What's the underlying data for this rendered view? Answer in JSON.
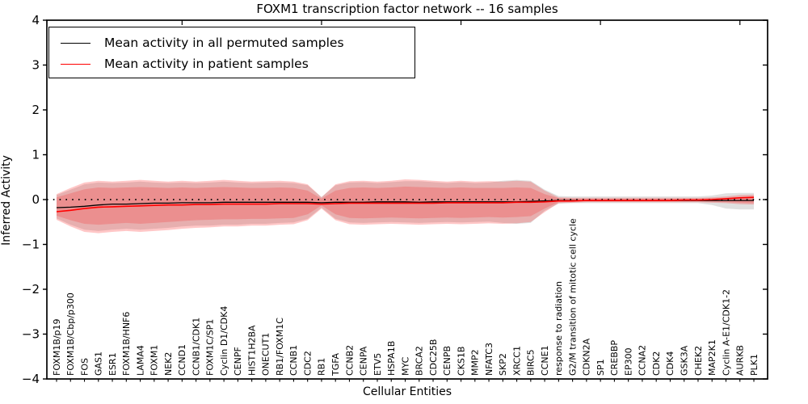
{
  "chart_data": {
    "type": "line",
    "title": "FOXM1 transcription factor network -- 16 samples",
    "xlabel": "Cellular Entities",
    "ylabel": "Inferred Activity",
    "ylim": [
      -4,
      4
    ],
    "ytick_values": [
      4,
      3,
      2,
      1,
      0,
      -1,
      -2,
      -3,
      -4
    ],
    "ytick_labels": [
      "4",
      "3",
      "2",
      "1",
      "0",
      "−1",
      "−2",
      "−3",
      "−4"
    ],
    "grid": false,
    "zero_line_style": "dotted",
    "legend": {
      "position": "upper left",
      "entries": [
        {
          "label": "Mean activity in all permuted samples",
          "color": "#000000"
        },
        {
          "label": "Mean activity in patient samples",
          "color": "#ff0000"
        }
      ]
    },
    "categories": [
      "FOXM1B/p19",
      "FOXM1B/Cbp/p300",
      "FOS",
      "GAS1",
      "ESR1",
      "FOXM1B/HNF6",
      "LAMA4",
      "FOXM1",
      "NEK2",
      "CCND1",
      "CCNB1/CDK1",
      "FOXM1C/SP1",
      "Cyclin D1/CDK4",
      "CENPF",
      "HIST1H2BA",
      "ONECUT1",
      "RB1/FOXM1C",
      "CCNB1",
      "CDC2",
      "RB1",
      "TGFA",
      "CCNB2",
      "CENPA",
      "ETV5",
      "HSPA1B",
      "MYC",
      "BRCA2",
      "CDC25B",
      "CENPB",
      "CKS1B",
      "MMP2",
      "NFATC3",
      "SKP2",
      "XRCC1",
      "BIRC5",
      "CCNE1",
      "response to radiation",
      "G2/M transition of mitotic cell cycle",
      "CDKN2A",
      "SP1",
      "CREBBP",
      "EP300",
      "CCNA2",
      "CDK2",
      "CDK4",
      "GSK3A",
      "CHEK2",
      "MAP2K1",
      "Cyclin A-E1/CDK1-2",
      "AURKB",
      "PLK1"
    ],
    "xticks_major_top_indices": [
      9,
      19,
      29,
      39,
      49
    ],
    "series": [
      {
        "name": "Mean activity in all permuted samples",
        "color": "#000000",
        "values": [
          -0.18,
          -0.17,
          -0.15,
          -0.12,
          -0.1,
          -0.1,
          -0.09,
          -0.08,
          -0.08,
          -0.07,
          -0.07,
          -0.07,
          -0.06,
          -0.06,
          -0.06,
          -0.06,
          -0.06,
          -0.06,
          -0.06,
          -0.07,
          -0.06,
          -0.06,
          -0.06,
          -0.05,
          -0.05,
          -0.05,
          -0.06,
          -0.05,
          -0.05,
          -0.05,
          -0.05,
          -0.05,
          -0.05,
          -0.05,
          -0.04,
          -0.03,
          -0.02,
          -0.02,
          -0.02,
          -0.02,
          -0.02,
          -0.02,
          -0.02,
          -0.02,
          -0.02,
          -0.02,
          -0.02,
          -0.02,
          -0.02,
          -0.02,
          -0.02
        ]
      },
      {
        "name": "Mean activity in patient samples",
        "color": "#ff0000",
        "values": [
          -0.27,
          -0.24,
          -0.2,
          -0.17,
          -0.16,
          -0.15,
          -0.14,
          -0.13,
          -0.12,
          -0.12,
          -0.11,
          -0.11,
          -0.1,
          -0.1,
          -0.1,
          -0.1,
          -0.09,
          -0.09,
          -0.09,
          -0.1,
          -0.09,
          -0.08,
          -0.08,
          -0.08,
          -0.08,
          -0.08,
          -0.08,
          -0.08,
          -0.07,
          -0.07,
          -0.07,
          -0.07,
          -0.07,
          -0.06,
          -0.06,
          -0.05,
          -0.03,
          -0.03,
          -0.02,
          -0.02,
          -0.02,
          -0.02,
          -0.02,
          -0.02,
          -0.02,
          -0.01,
          -0.01,
          0.0,
          0.02,
          0.04,
          0.05
        ]
      }
    ],
    "bands": [
      {
        "name": "permuted-range",
        "color": "rgba(0,0,0,0.12)",
        "top": [
          0.1,
          0.22,
          0.34,
          0.38,
          0.37,
          0.38,
          0.4,
          0.38,
          0.37,
          0.38,
          0.37,
          0.38,
          0.4,
          0.38,
          0.37,
          0.38,
          0.38,
          0.37,
          0.32,
          0.06,
          0.32,
          0.38,
          0.39,
          0.37,
          0.39,
          0.41,
          0.41,
          0.39,
          0.37,
          0.39,
          0.37,
          0.38,
          0.42,
          0.44,
          0.42,
          0.22,
          0.08,
          0.07,
          0.07,
          0.07,
          0.07,
          0.07,
          0.07,
          0.07,
          0.07,
          0.07,
          0.07,
          0.09,
          0.14,
          0.15,
          0.15
        ],
        "bottom": [
          -0.42,
          -0.56,
          -0.67,
          -0.7,
          -0.67,
          -0.65,
          -0.67,
          -0.65,
          -0.63,
          -0.6,
          -0.58,
          -0.58,
          -0.56,
          -0.56,
          -0.54,
          -0.54,
          -0.52,
          -0.51,
          -0.43,
          -0.18,
          -0.43,
          -0.51,
          -0.52,
          -0.51,
          -0.5,
          -0.51,
          -0.52,
          -0.51,
          -0.5,
          -0.51,
          -0.5,
          -0.49,
          -0.52,
          -0.54,
          -0.52,
          -0.25,
          -0.09,
          -0.08,
          -0.08,
          -0.08,
          -0.08,
          -0.08,
          -0.08,
          -0.08,
          -0.08,
          -0.08,
          -0.08,
          -0.12,
          -0.2,
          -0.22,
          -0.22
        ]
      },
      {
        "name": "patient-range-outer",
        "color": "rgba(255,0,0,0.22)",
        "top": [
          0.12,
          0.26,
          0.38,
          0.42,
          0.4,
          0.42,
          0.44,
          0.42,
          0.4,
          0.42,
          0.4,
          0.42,
          0.44,
          0.42,
          0.4,
          0.41,
          0.42,
          0.4,
          0.34,
          0.05,
          0.34,
          0.41,
          0.42,
          0.4,
          0.42,
          0.45,
          0.44,
          0.42,
          0.4,
          0.42,
          0.4,
          0.41,
          0.4,
          0.42,
          0.4,
          0.2,
          0.05,
          0.04,
          0.04,
          0.04,
          0.04,
          0.04,
          0.04,
          0.04,
          0.04,
          0.04,
          0.04,
          0.05,
          0.07,
          0.1,
          0.11
        ],
        "bottom": [
          -0.45,
          -0.6,
          -0.72,
          -0.75,
          -0.72,
          -0.7,
          -0.72,
          -0.7,
          -0.68,
          -0.65,
          -0.63,
          -0.62,
          -0.6,
          -0.6,
          -0.58,
          -0.58,
          -0.56,
          -0.55,
          -0.46,
          -0.2,
          -0.46,
          -0.55,
          -0.56,
          -0.55,
          -0.54,
          -0.55,
          -0.56,
          -0.55,
          -0.54,
          -0.55,
          -0.54,
          -0.53,
          -0.54,
          -0.53,
          -0.5,
          -0.28,
          -0.08,
          -0.07,
          -0.06,
          -0.06,
          -0.06,
          -0.06,
          -0.06,
          -0.06,
          -0.06,
          -0.06,
          -0.06,
          -0.07,
          -0.08,
          -0.1,
          -0.11
        ]
      },
      {
        "name": "patient-range-inner",
        "color": "rgba(255,0,0,0.18)",
        "top": [
          0.05,
          0.14,
          0.23,
          0.27,
          0.26,
          0.27,
          0.28,
          0.27,
          0.26,
          0.27,
          0.26,
          0.27,
          0.28,
          0.27,
          0.26,
          0.26,
          0.27,
          0.26,
          0.2,
          0.02,
          0.2,
          0.26,
          0.27,
          0.26,
          0.27,
          0.29,
          0.28,
          0.27,
          0.26,
          0.27,
          0.26,
          0.26,
          0.26,
          0.27,
          0.26,
          0.12,
          0.03,
          0.02,
          0.02,
          0.02,
          0.02,
          0.02,
          0.02,
          0.02,
          0.02,
          0.02,
          0.02,
          0.03,
          0.04,
          0.06,
          0.07
        ],
        "bottom": [
          -0.36,
          -0.46,
          -0.54,
          -0.56,
          -0.54,
          -0.52,
          -0.54,
          -0.52,
          -0.5,
          -0.48,
          -0.46,
          -0.45,
          -0.44,
          -0.44,
          -0.43,
          -0.43,
          -0.42,
          -0.41,
          -0.33,
          -0.13,
          -0.33,
          -0.41,
          -0.42,
          -0.41,
          -0.4,
          -0.41,
          -0.42,
          -0.41,
          -0.4,
          -0.41,
          -0.4,
          -0.39,
          -0.4,
          -0.39,
          -0.37,
          -0.2,
          -0.06,
          -0.05,
          -0.04,
          -0.04,
          -0.04,
          -0.04,
          -0.04,
          -0.04,
          -0.04,
          -0.04,
          -0.04,
          -0.05,
          -0.06,
          -0.07,
          -0.08
        ]
      }
    ]
  }
}
